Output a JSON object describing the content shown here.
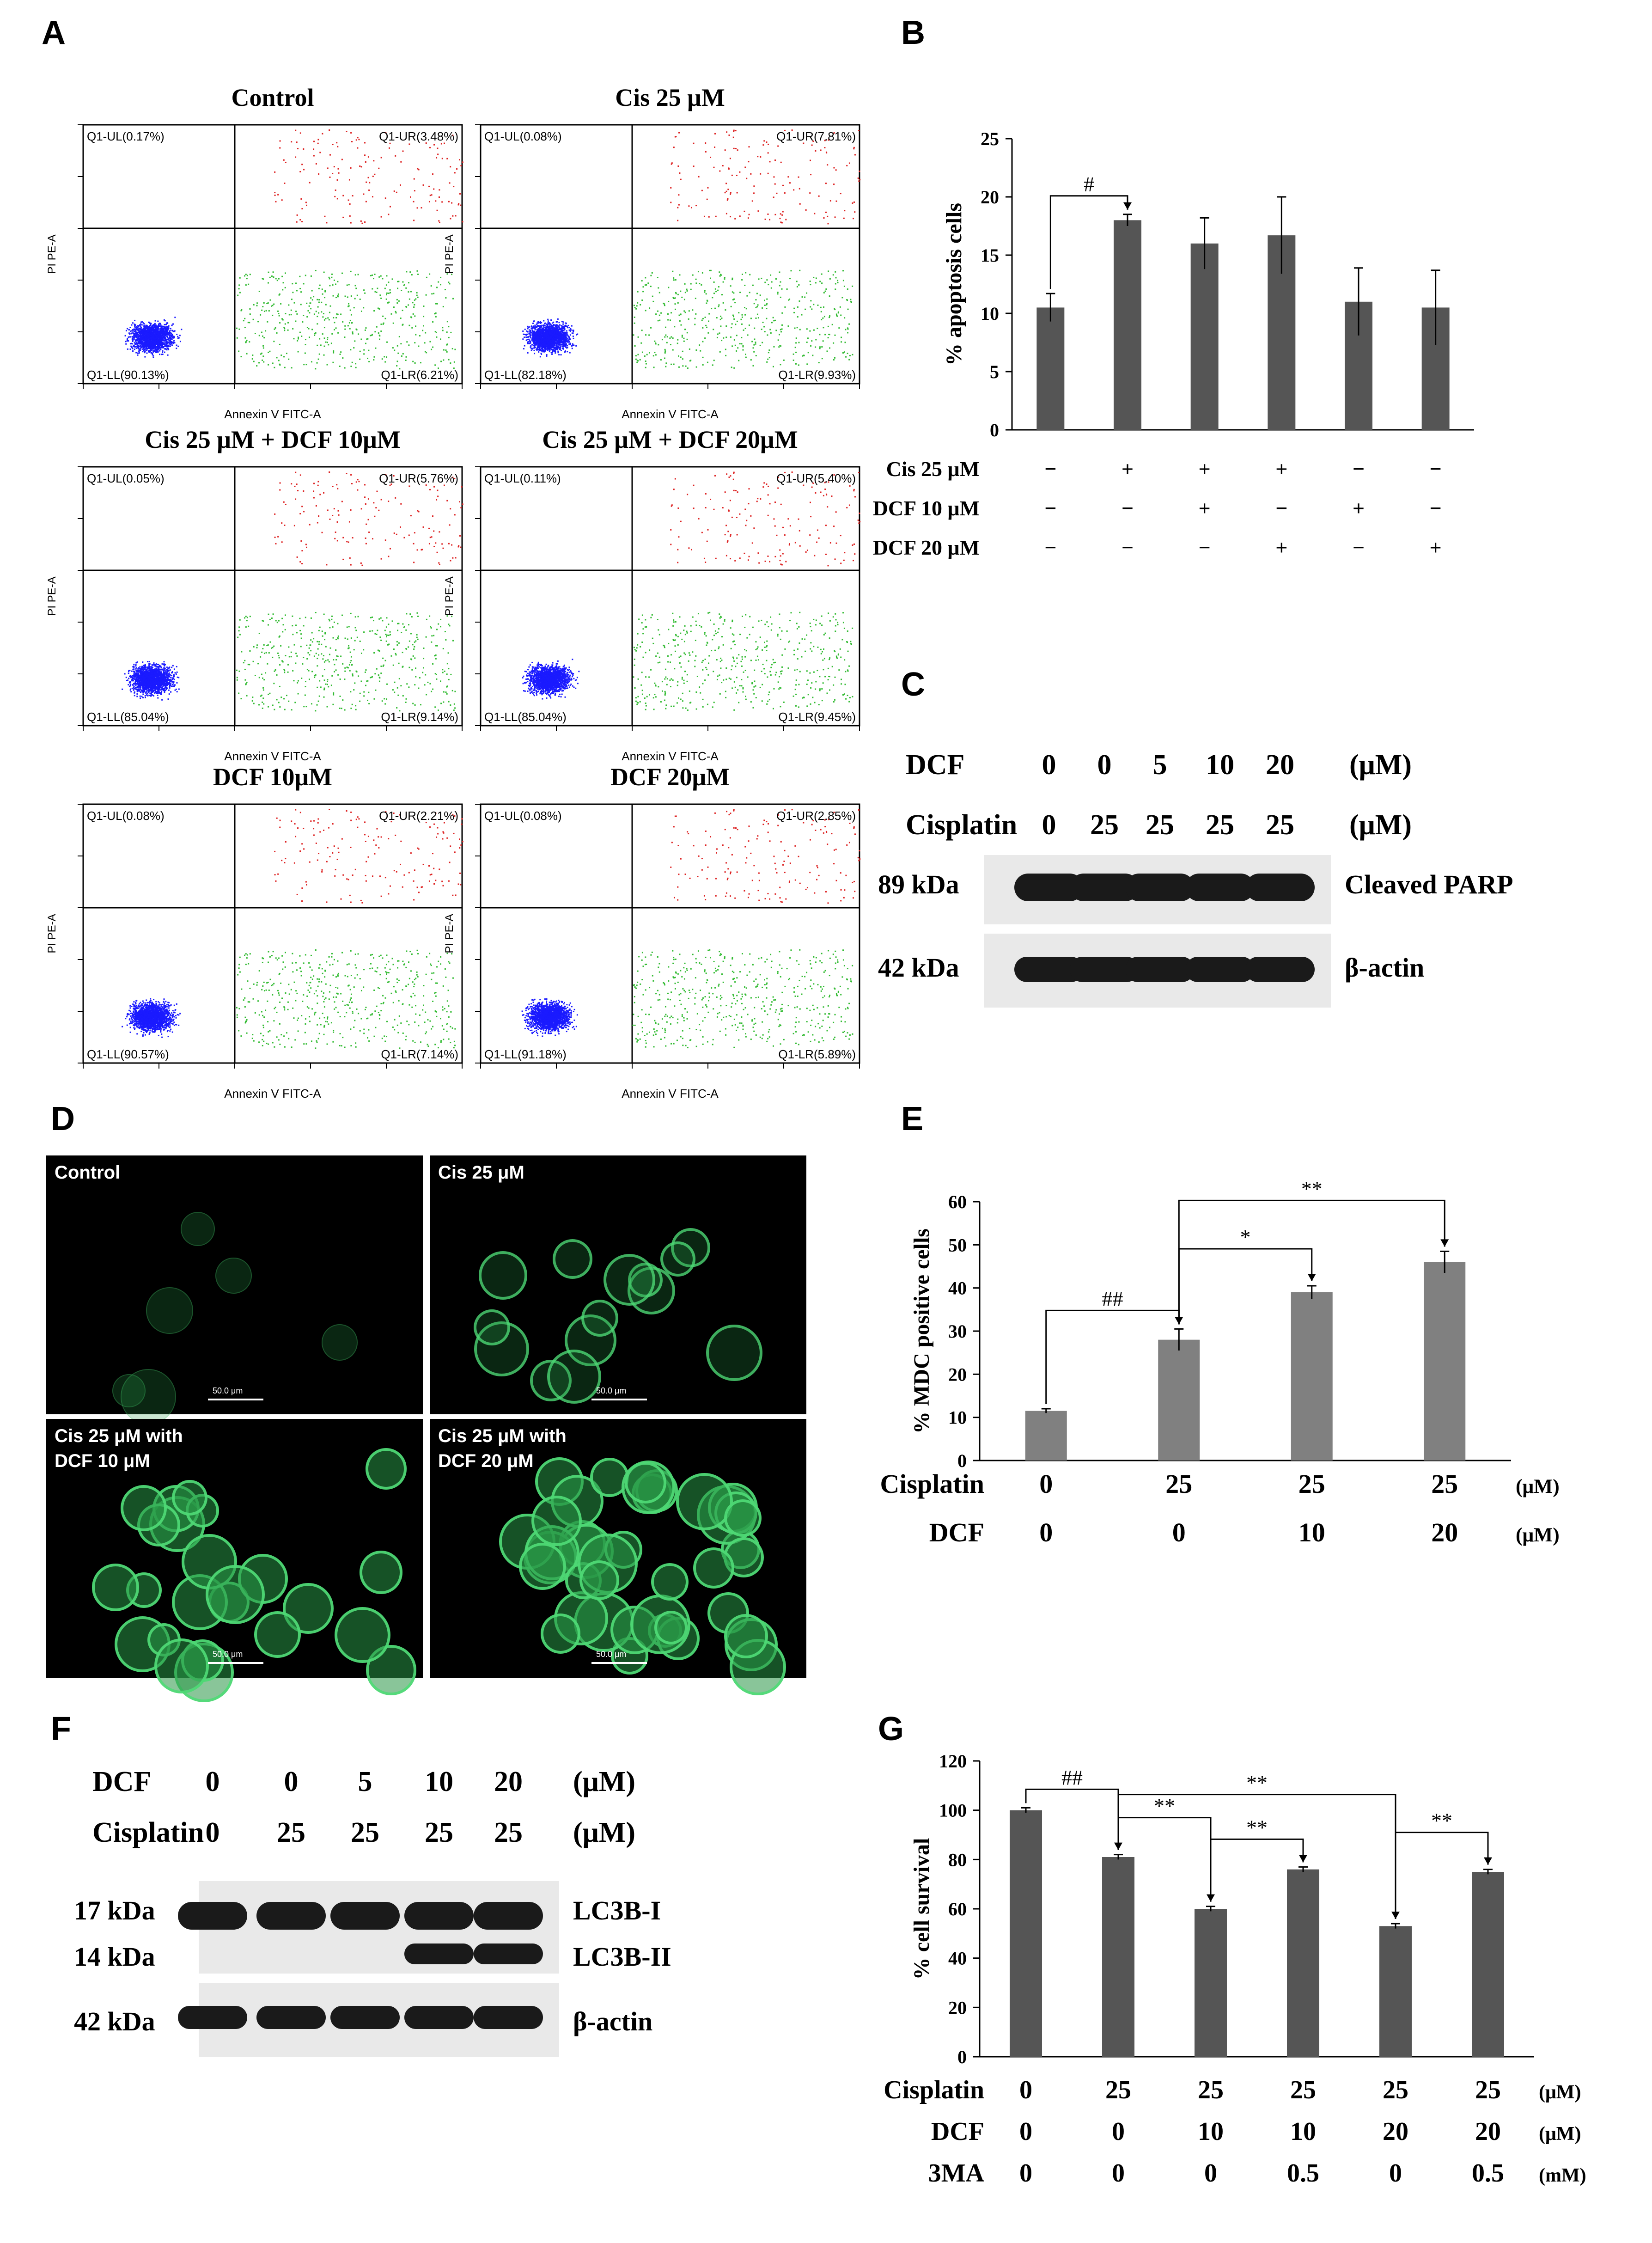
{
  "panels": {
    "A": "A",
    "B": "B",
    "C": "C",
    "D": "D",
    "E": "E",
    "F": "F",
    "G": "G"
  },
  "flow": {
    "ylabel": "PI PE-A",
    "xlabel": "Annexin V FITC-A",
    "plots": [
      {
        "title": "Control",
        "ul": "Q1-UL(0.17%)",
        "ur": "Q1-UR(3.48%)",
        "ll": "Q1-LL(90.13%)",
        "lr": "Q1-LR(6.21%)"
      },
      {
        "title": "Cis 25 μM",
        "ul": "Q1-UL(0.08%)",
        "ur": "Q1-UR(7.81%)",
        "ll": "Q1-LL(82.18%)",
        "lr": "Q1-LR(9.93%)"
      },
      {
        "title": "Cis 25 μM + DCF 10μM",
        "ul": "Q1-UL(0.05%)",
        "ur": "Q1-UR(5.76%)",
        "ll": "Q1-LL(85.04%)",
        "lr": "Q1-LR(9.14%)"
      },
      {
        "title": "Cis 25 μM + DCF 20μM",
        "ul": "Q1-UL(0.11%)",
        "ur": "Q1-UR(5.40%)",
        "ll": "Q1-LL(85.04%)",
        "lr": "Q1-LR(9.45%)"
      },
      {
        "title": "DCF 10μM",
        "ul": "Q1-UL(0.08%)",
        "ur": "Q1-UR(2.21%)",
        "ll": "Q1-LL(90.57%)",
        "lr": "Q1-LR(7.14%)"
      },
      {
        "title": "DCF 20μM",
        "ul": "Q1-UL(0.08%)",
        "ur": "Q1-UR(2.85%)",
        "ll": "Q1-LL(91.18%)",
        "lr": "Q1-LR(5.89%)"
      }
    ],
    "colors": {
      "ll": "#1a1aff",
      "lr": "#33bb33",
      "ur": "#dd2222",
      "ul": "#1a1aff"
    }
  },
  "chart_data": [
    {
      "id": "B",
      "type": "bar",
      "ylabel": "% apoptosis cells",
      "ylim": [
        0,
        25
      ],
      "yticks": [
        0,
        5,
        10,
        15,
        20,
        25
      ],
      "values": [
        10.5,
        18,
        16,
        16.7,
        11,
        10.5
      ],
      "errors": [
        1.2,
        0.5,
        2.2,
        3.3,
        2.9,
        3.2
      ],
      "conditions": [
        {
          "label": "Cis 25 μM",
          "marks": [
            "−",
            "+",
            "+",
            "+",
            "−",
            "−"
          ]
        },
        {
          "label": "DCF 10 μM",
          "marks": [
            "−",
            "−",
            "+",
            "−",
            "+",
            "−"
          ]
        },
        {
          "label": "DCF 20 μM",
          "marks": [
            "−",
            "−",
            "−",
            "+",
            "−",
            "+"
          ]
        }
      ],
      "annotations": [
        {
          "from": 0,
          "to": 1,
          "text": "#"
        }
      ],
      "bar_color": "#555555"
    },
    {
      "id": "E",
      "type": "bar",
      "ylabel": "% MDC positive cells",
      "ylim": [
        0,
        60
      ],
      "yticks": [
        0,
        10,
        20,
        30,
        40,
        50,
        60
      ],
      "values": [
        11.5,
        28,
        39,
        46
      ],
      "errors": [
        0.5,
        2.5,
        1.5,
        2.5
      ],
      "conditions": [
        {
          "label": "Cisplatin",
          "marks": [
            "0",
            "25",
            "25",
            "25"
          ],
          "unit": "(μM)"
        },
        {
          "label": "DCF",
          "marks": [
            "0",
            "0",
            "10",
            "20"
          ],
          "unit": "(μM)"
        }
      ],
      "annotations": [
        {
          "from": 0,
          "to": 1,
          "text": "##"
        },
        {
          "from": 1,
          "to": 2,
          "text": "*"
        },
        {
          "from": 1,
          "to": 3,
          "text": "**"
        }
      ],
      "bar_color": "#808080"
    },
    {
      "id": "G",
      "type": "bar",
      "ylabel": "% cell survival",
      "ylim": [
        0,
        120
      ],
      "yticks": [
        0,
        20,
        40,
        60,
        80,
        100,
        120
      ],
      "values": [
        100,
        81,
        60,
        76,
        53,
        75
      ],
      "errors": [
        1,
        1,
        1,
        1,
        1,
        1
      ],
      "conditions": [
        {
          "label": "Cisplatin",
          "marks": [
            "0",
            "25",
            "25",
            "25",
            "25",
            "25"
          ],
          "unit": "(μM)"
        },
        {
          "label": "DCF",
          "marks": [
            "0",
            "0",
            "10",
            "10",
            "20",
            "20"
          ],
          "unit": "(μM)"
        },
        {
          "label": "3MA",
          "marks": [
            "0",
            "0",
            "0",
            "0.5",
            "0",
            "0.5"
          ],
          "unit": "(mM)"
        }
      ],
      "annotations": [
        {
          "from": 0,
          "to": 1,
          "text": "##"
        },
        {
          "from": 1,
          "to": 2,
          "text": "**"
        },
        {
          "from": 2,
          "to": 3,
          "text": "**"
        },
        {
          "from": 1,
          "to": 4,
          "text": "**"
        },
        {
          "from": 4,
          "to": 5,
          "text": "**"
        }
      ],
      "bar_color": "#555555"
    }
  ],
  "blotC": {
    "header1": {
      "label": "DCF",
      "values": [
        "0",
        "0",
        "5",
        "10",
        "20"
      ],
      "unit": "(μM)"
    },
    "header2": {
      "label": "Cisplatin",
      "values": [
        "0",
        "25",
        "25",
        "25",
        "25"
      ],
      "unit": "(μM)"
    },
    "rows": [
      {
        "kda": "89 kDa",
        "name": "Cleaved PARP"
      },
      {
        "kda": "42 kDa",
        "name": "β-actin"
      }
    ]
  },
  "micro": [
    {
      "label": "Control"
    },
    {
      "label": "Cis 25 μM"
    },
    {
      "label": "Cis 25 μM with\nDCF 10 μM"
    },
    {
      "label": "Cis 25 μM with\nDCF 20 μM"
    }
  ],
  "scale": "50.0 μm",
  "blotF": {
    "header1": {
      "label": "DCF",
      "values": [
        "0",
        "0",
        "5",
        "10",
        "20"
      ],
      "unit": "(μM)"
    },
    "header2": {
      "label": "Cisplatin",
      "values": [
        "0",
        "25",
        "25",
        "25",
        "25"
      ],
      "unit": "(μM)"
    },
    "rows": [
      {
        "kda": "17 kDa",
        "name": "LC3B-I"
      },
      {
        "kda": "14 kDa",
        "name": "LC3B-II"
      },
      {
        "kda": "42 kDa",
        "name": "β-actin"
      }
    ]
  }
}
